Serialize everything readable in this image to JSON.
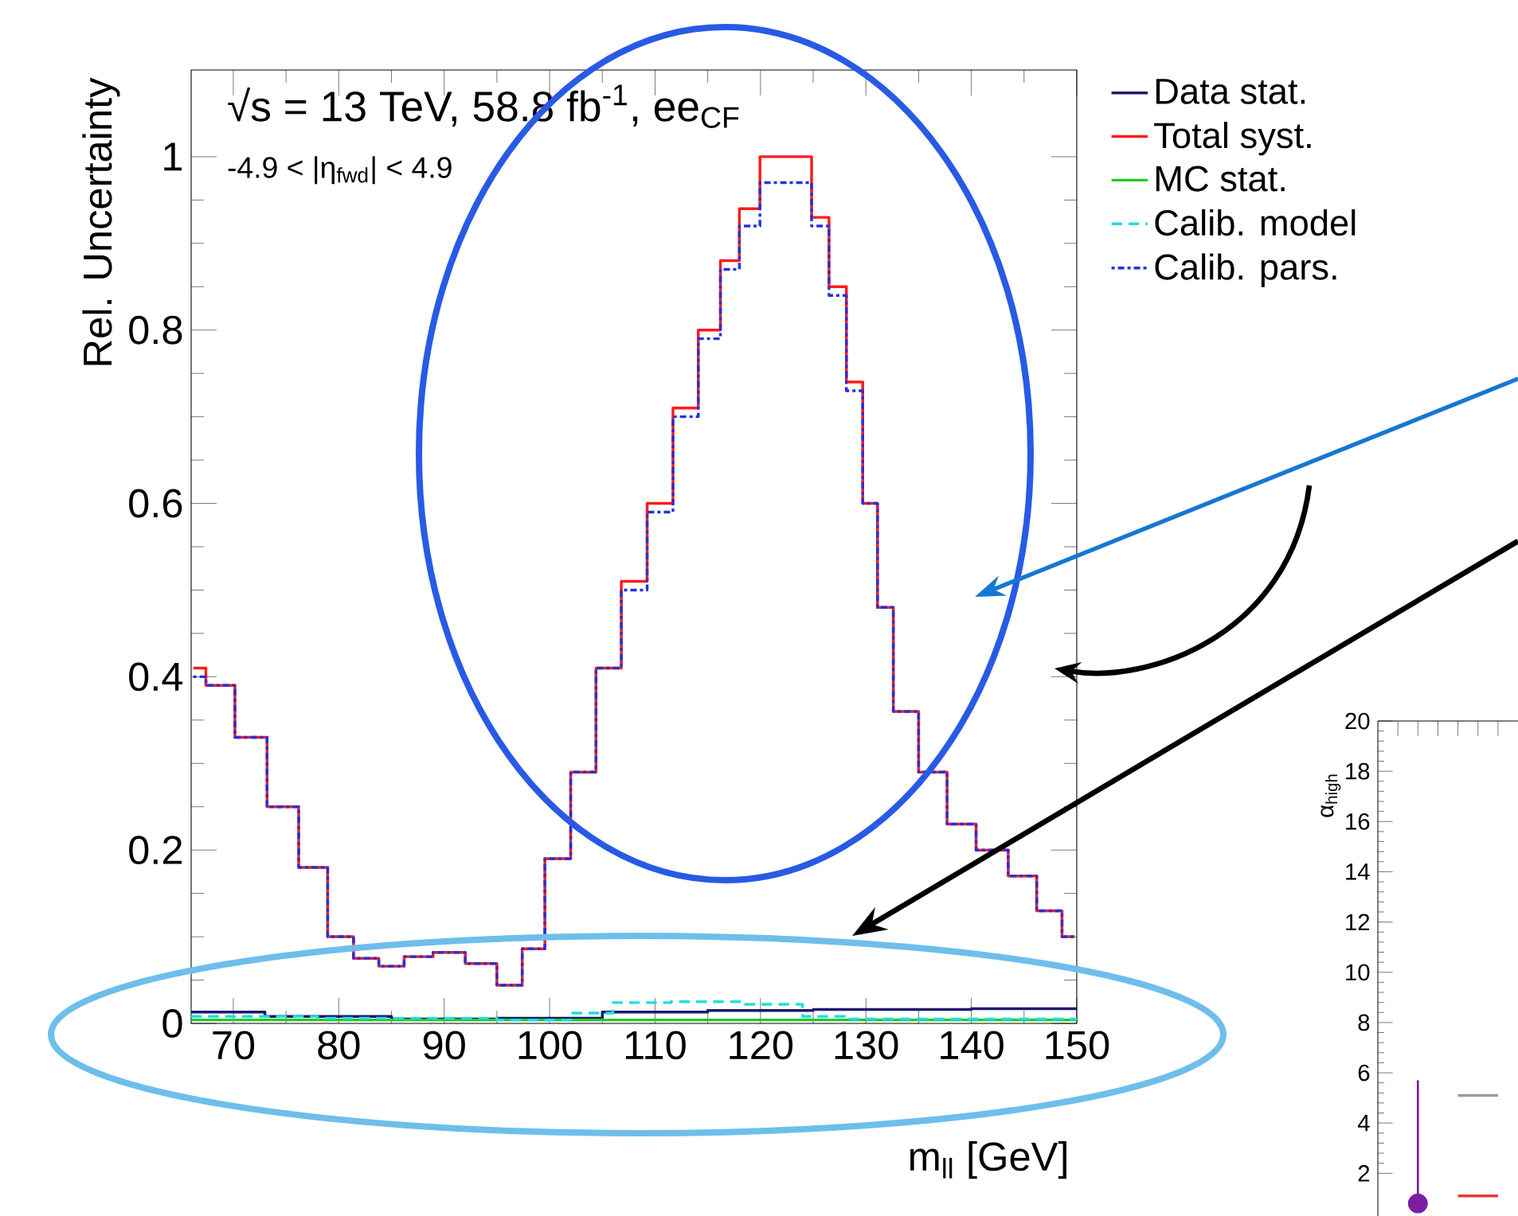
{
  "chart_data": [
    {
      "type": "step",
      "xlabel": "m$_{ll}$ [GeV]",
      "ylabel": "Rel. Uncertainty",
      "annotations": [
        "√s = 13 TeV, 58.8 fb$^{-1}$, ee$_{CF}$",
        "-4.9 < |η$_{fwd}$| < 4.9"
      ],
      "xlim": [
        66,
        150
      ],
      "ylim": [
        0,
        1.1
      ],
      "xticks": [
        70,
        80,
        90,
        100,
        110,
        120,
        130,
        140,
        150
      ],
      "yticks": [
        0,
        0.2,
        0.4,
        0.6,
        0.8,
        1
      ],
      "legend": "top right",
      "series": [
        {
          "name": "Data stat.",
          "color": "#1a1a6e",
          "line_style": "solid",
          "x": [
            66,
            80,
            90,
            100,
            110,
            120,
            130,
            150
          ],
          "values": [
            0.013,
            0.008,
            0.005,
            0.006,
            0.013,
            0.015,
            0.016,
            0.017
          ]
        },
        {
          "name": "Total syst.",
          "color": "#ff1a1a",
          "line_style": "solid",
          "x": [
            66.2,
            68.6,
            71.7,
            74.7,
            77.7,
            80.2,
            82.6,
            85,
            87.4,
            90.5,
            93.5,
            96.5,
            98.3,
            100.8,
            103.2,
            105.6,
            108,
            110.5,
            112.9,
            115.3,
            117.1,
            118.9,
            121,
            124.1,
            125.6,
            127.4,
            128.9,
            130.5,
            131.7,
            133.5,
            136.5,
            138.9,
            142,
            145,
            147.4,
            149.8
          ],
          "values": [
            0.41,
            0.39,
            0.33,
            0.25,
            0.18,
            0.1,
            0.075,
            0.066,
            0.077,
            0.082,
            0.069,
            0.044,
            0.086,
            0.19,
            0.29,
            0.41,
            0.51,
            0.6,
            0.71,
            0.8,
            0.88,
            0.94,
            1.0,
            1.0,
            0.93,
            0.85,
            0.74,
            0.6,
            0.48,
            0.36,
            0.29,
            0.23,
            0.2,
            0.17,
            0.13,
            0.1
          ]
        },
        {
          "name": "MC stat.",
          "color": "#22cc22",
          "line_style": "solid",
          "x": [
            66,
            100,
            150
          ],
          "values": [
            0.004,
            0.004,
            0.004
          ]
        },
        {
          "name": "Calib. model",
          "color": "#22dddd",
          "line_style": "dashed",
          "x": [
            66,
            90,
            100,
            104,
            108,
            115,
            122,
            126,
            130,
            150
          ],
          "values": [
            0.008,
            0.006,
            0.004,
            0.012,
            0.024,
            0.025,
            0.022,
            0.008,
            0.005,
            0.005
          ]
        },
        {
          "name": "Calib. pars.",
          "color": "#2233dd",
          "line_style": "dotted",
          "x": [
            66.2,
            68.6,
            71.7,
            74.7,
            77.7,
            80.2,
            82.6,
            85,
            87.4,
            90.5,
            93.5,
            96.5,
            98.3,
            100.8,
            103.2,
            105.6,
            108,
            110.5,
            112.9,
            115.3,
            117.1,
            118.9,
            121,
            124.1,
            125.6,
            127.4,
            128.9,
            130.5,
            131.7,
            133.5,
            136.5,
            138.9,
            142,
            145,
            147.4,
            149.8
          ],
          "values": [
            0.4,
            0.39,
            0.33,
            0.25,
            0.18,
            0.1,
            0.075,
            0.066,
            0.077,
            0.082,
            0.069,
            0.044,
            0.086,
            0.19,
            0.29,
            0.41,
            0.5,
            0.59,
            0.7,
            0.79,
            0.87,
            0.92,
            0.97,
            0.97,
            0.92,
            0.84,
            0.73,
            0.6,
            0.48,
            0.36,
            0.29,
            0.23,
            0.2,
            0.17,
            0.13,
            0.1
          ]
        }
      ]
    },
    {
      "type": "scatter",
      "ylabel": "α$_{high}$",
      "categories": [
        null,
        null,
        null
      ],
      "ylim": [
        0.3,
        20
      ],
      "yticks": [
        2,
        4,
        6,
        8,
        10,
        12,
        14,
        16,
        18,
        20
      ],
      "tick_labels": "y",
      "series": [
        {
          "type": "scatter",
          "color": "#7b1fa2",
          "marker": "circle",
          "values": [
            0.8,
            null,
            null
          ],
          "errors": [
            [
              0.8,
              5.7
            ],
            null,
            null
          ]
        },
        {
          "type": "line",
          "color": "#999999",
          "values": [
            null,
            5.1,
            5.1
          ]
        },
        {
          "type": "line",
          "color": "#e53935",
          "values": [
            null,
            1.1,
            1.1
          ]
        }
      ]
    }
  ]
}
